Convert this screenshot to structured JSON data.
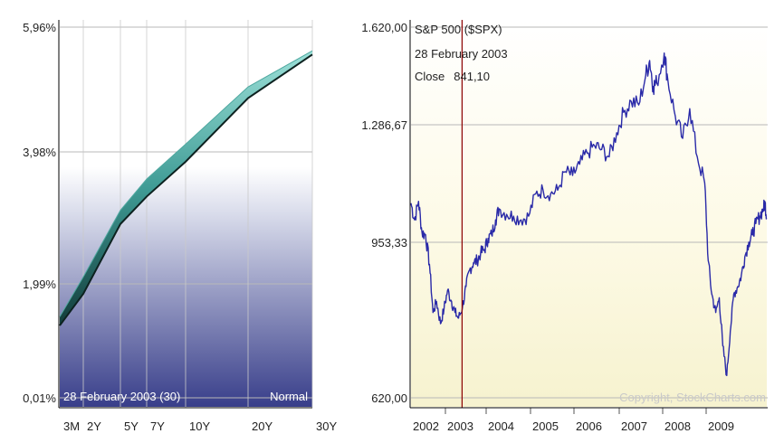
{
  "chart_data": [
    {
      "type": "area",
      "subtype": "yield-curve",
      "x_labels": [
        "3M",
        "2Y",
        "5Y",
        "7Y",
        "10Y",
        "20Y",
        "30Y"
      ],
      "x_years": [
        0.25,
        2,
        5,
        7,
        10,
        20,
        30
      ],
      "y_ticks": [
        "5,96%",
        "3,98%",
        "1,99%",
        "0,01%"
      ],
      "ylim": [
        0.01,
        5.96
      ],
      "band": {
        "upper": [
          1.31,
          1.95,
          3.02,
          3.52,
          4.08,
          5.0,
          5.58
        ],
        "lower": [
          1.17,
          1.68,
          2.8,
          3.24,
          3.8,
          4.82,
          5.52
        ]
      },
      "date_label": "28 February 2003 (30)",
      "mode_label": "Normal",
      "gridlines": true
    },
    {
      "type": "line",
      "series": [
        {
          "name": "S&P 500 ($SPX)",
          "points": [
            [
              2002.0,
              1145
            ],
            [
              2002.08,
              1100
            ],
            [
              2002.17,
              1150
            ],
            [
              2002.25,
              1065
            ],
            [
              2002.33,
              1060
            ],
            [
              2002.42,
              980
            ],
            [
              2002.5,
              850
            ],
            [
              2002.58,
              880
            ],
            [
              2002.67,
              820
            ],
            [
              2002.75,
              860
            ],
            [
              2002.83,
              910
            ],
            [
              2002.92,
              880
            ],
            [
              2003.0,
              850
            ],
            [
              2003.08,
              835
            ],
            [
              2003.17,
              865
            ],
            [
              2003.25,
              920
            ],
            [
              2003.33,
              965
            ],
            [
              2003.42,
              985
            ],
            [
              2003.5,
              990
            ],
            [
              2003.58,
              1010
            ],
            [
              2003.67,
              1020
            ],
            [
              2003.75,
              1050
            ],
            [
              2003.83,
              1060
            ],
            [
              2003.92,
              1100
            ],
            [
              2004.0,
              1130
            ],
            [
              2004.17,
              1115
            ],
            [
              2004.33,
              1110
            ],
            [
              2004.5,
              1100
            ],
            [
              2004.67,
              1110
            ],
            [
              2004.83,
              1170
            ],
            [
              2005.0,
              1180
            ],
            [
              2005.17,
              1170
            ],
            [
              2005.33,
              1180
            ],
            [
              2005.5,
              1230
            ],
            [
              2005.67,
              1220
            ],
            [
              2005.83,
              1250
            ],
            [
              2006.0,
              1280
            ],
            [
              2006.17,
              1300
            ],
            [
              2006.33,
              1290
            ],
            [
              2006.5,
              1270
            ],
            [
              2006.67,
              1335
            ],
            [
              2006.83,
              1390
            ],
            [
              2007.0,
              1420
            ],
            [
              2007.17,
              1410
            ],
            [
              2007.33,
              1490
            ],
            [
              2007.42,
              1530
            ],
            [
              2007.5,
              1460
            ],
            [
              2007.58,
              1470
            ],
            [
              2007.75,
              1550
            ],
            [
              2007.83,
              1480
            ],
            [
              2008.0,
              1380
            ],
            [
              2008.17,
              1320
            ],
            [
              2008.33,
              1400
            ],
            [
              2008.5,
              1270
            ],
            [
              2008.67,
              1200
            ],
            [
              2008.75,
              990
            ],
            [
              2008.83,
              900
            ],
            [
              2008.92,
              850
            ],
            [
              2009.0,
              890
            ],
            [
              2009.08,
              760
            ],
            [
              2009.17,
              680
            ],
            [
              2009.25,
              800
            ],
            [
              2009.33,
              900
            ],
            [
              2009.42,
              920
            ],
            [
              2009.5,
              950
            ],
            [
              2009.58,
              1000
            ],
            [
              2009.67,
              1040
            ],
            [
              2009.75,
              1060
            ],
            [
              2009.83,
              1090
            ],
            [
              2009.92,
              1110
            ],
            [
              2010.0,
              1130
            ],
            [
              2010.04,
              1145
            ],
            [
              2010.08,
              1105
            ]
          ]
        }
      ],
      "title": "S&P 500 ($SPX)",
      "marker": {
        "date_label": "28 February 2003",
        "close_label": "Close",
        "close_value": "841,10",
        "x": 2003.16,
        "color": "#8b0000"
      },
      "y_ticks": [
        "1.620,00",
        "1.286,67",
        "953,33",
        "620,00"
      ],
      "y_tick_values": [
        1620,
        1286.67,
        953.33,
        620
      ],
      "ylim": [
        620,
        1620
      ],
      "x_labels": [
        "2002",
        "2003",
        "2004",
        "2005",
        "2006",
        "2007",
        "2008",
        "2009"
      ],
      "xlim": [
        2002.0,
        2010.1
      ],
      "copyright": "Copyright, StockCharts.com",
      "line_color": "#2a2aa8",
      "gridlines": true
    }
  ]
}
